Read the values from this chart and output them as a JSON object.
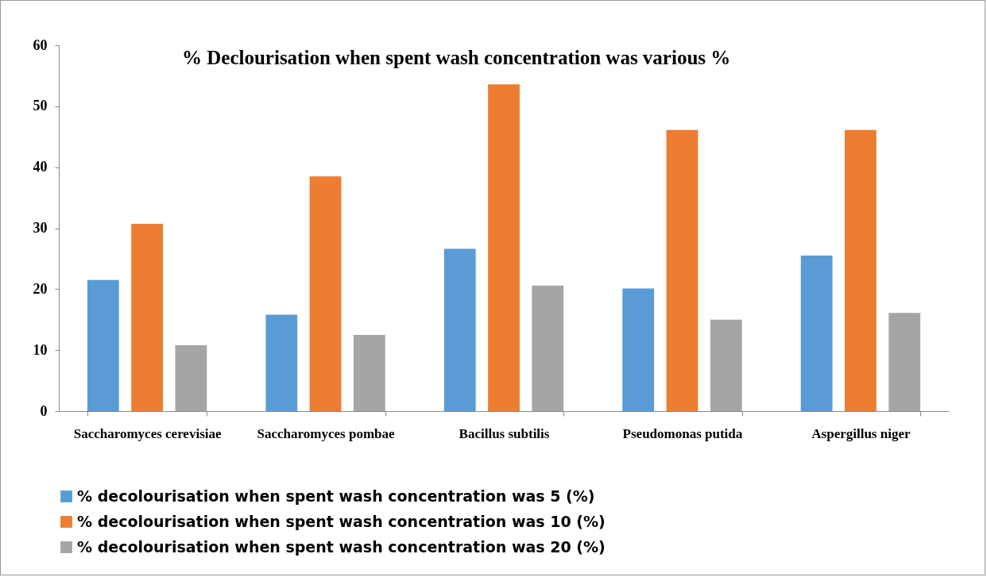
{
  "chart_data": {
    "type": "bar",
    "title": "%  Declourisation when spent wash concentration was various %",
    "categories": [
      "Saccharomyces cerevisiae",
      "Saccharomyces pombae",
      "Bacillus subtilis",
      "Pseudomonas putida",
      "Aspergillus niger"
    ],
    "series": [
      {
        "name": "% decolourisation when spent wash concentration was 5  (%)",
        "color": "#5b9bd5",
        "values": [
          21.5,
          15.8,
          26.6,
          20.1,
          25.5
        ]
      },
      {
        "name": "% decolourisation when spent wash concentration was 10  (%)",
        "color": "#ed7d31",
        "values": [
          30.7,
          38.5,
          53.6,
          46.1,
          46.1
        ]
      },
      {
        "name": "% decolourisation when spent wash concentration was 20  (%)",
        "color": "#a5a5a5",
        "values": [
          10.8,
          12.5,
          20.6,
          15.0,
          16.1
        ]
      }
    ],
    "ylim": [
      0,
      60
    ],
    "yticks": [
      0,
      10,
      20,
      30,
      40,
      50,
      60
    ],
    "grid": false,
    "legend": "bottom"
  }
}
